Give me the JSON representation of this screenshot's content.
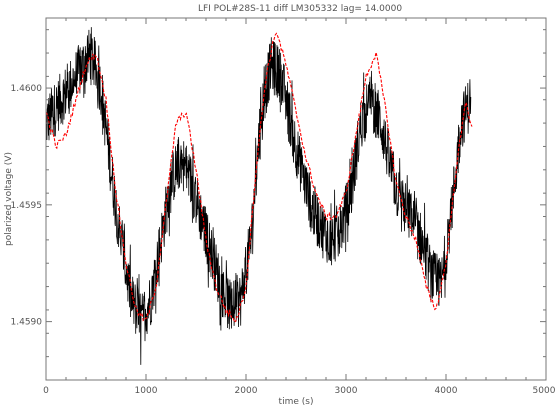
{
  "chart_data": {
    "type": "line",
    "title": "LFI POL#28S-11  diff  LM305332  lag=  14.0000",
    "xlabel": "time (s)",
    "ylabel": "polarized voltage (V)",
    "xlim": [
      0,
      5000
    ],
    "ylim": [
      1.45875,
      1.4603
    ],
    "xticks": [
      0,
      1000,
      2000,
      3000,
      4000,
      5000
    ],
    "yticks": [
      1.459,
      1.4595,
      1.46
    ],
    "ytick_labels": [
      "1.4590",
      "1.4595",
      "1.4600"
    ],
    "grid": false,
    "series": [
      {
        "color": "#000000",
        "style": "noisy-line",
        "x": [
          0,
          150,
          300,
          450,
          550,
          650,
          750,
          850,
          950,
          1050,
          1150,
          1250,
          1350,
          1450,
          1550,
          1650,
          1750,
          1850,
          1950,
          2050,
          2150,
          2250,
          2350,
          2450,
          2550,
          2650,
          2750,
          2850,
          2950,
          3050,
          3150,
          3250,
          3350,
          3450,
          3550,
          3650,
          3750,
          3850,
          3950,
          4050,
          4150,
          4250
        ],
        "y": [
          1.45985,
          1.45995,
          1.46005,
          1.46015,
          1.46,
          1.45965,
          1.45935,
          1.4591,
          1.459,
          1.4591,
          1.45935,
          1.4596,
          1.4597,
          1.4596,
          1.45945,
          1.4593,
          1.45915,
          1.45905,
          1.4591,
          1.45935,
          1.4599,
          1.4601,
          1.46005,
          1.45985,
          1.45965,
          1.4595,
          1.4594,
          1.45935,
          1.4594,
          1.45955,
          1.45985,
          1.45995,
          1.45985,
          1.45965,
          1.4595,
          1.45945,
          1.45935,
          1.4592,
          1.45915,
          1.45945,
          1.45985,
          1.45995
        ]
      },
      {
        "color": "#ff0000",
        "style": "dashed-line",
        "x": [
          0,
          100,
          200,
          300,
          400,
          500,
          600,
          700,
          800,
          900,
          1000,
          1100,
          1200,
          1300,
          1400,
          1500,
          1600,
          1700,
          1800,
          1900,
          2000,
          2100,
          2200,
          2300,
          2400,
          2500,
          2600,
          2700,
          2800,
          2900,
          3000,
          3100,
          3200,
          3300,
          3400,
          3500,
          3600,
          3700,
          3800,
          3900,
          4000,
          4100,
          4200,
          4270
        ],
        "y": [
          1.4599,
          1.45975,
          1.4598,
          1.45995,
          1.4601,
          1.46015,
          1.45995,
          1.45955,
          1.45925,
          1.45905,
          1.459,
          1.45915,
          1.4595,
          1.45985,
          1.4599,
          1.45965,
          1.45935,
          1.45915,
          1.45905,
          1.459,
          1.45915,
          1.45965,
          1.46005,
          1.46025,
          1.4601,
          1.4599,
          1.4597,
          1.45955,
          1.45945,
          1.45945,
          1.45955,
          1.4598,
          1.46005,
          1.46015,
          1.4599,
          1.4596,
          1.45945,
          1.45935,
          1.45915,
          1.45905,
          1.45925,
          1.45965,
          1.45995,
          1.4598
        ]
      }
    ]
  }
}
